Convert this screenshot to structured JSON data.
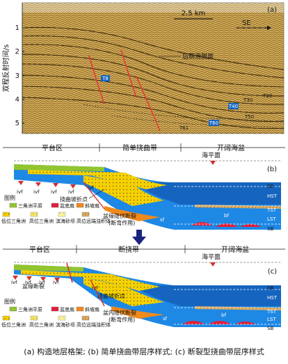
{
  "panel_a": {
    "label": "(a)",
    "scale": "2.5 km",
    "direction": "SE",
    "yaxis_label": "双程反射时间/s",
    "yticks": [
      "1",
      "2",
      "3",
      "4",
      "5"
    ],
    "annotation": "后期滑脱面",
    "horizons": [
      "T8",
      "T20",
      "T30",
      "T40",
      "T60",
      "T50",
      "T61"
    ]
  },
  "panel_b": {
    "label": "(b)",
    "zones": [
      "平台区",
      "简单挠曲带",
      "开阔海盆"
    ],
    "sea_level": "海平面",
    "ivf": "ivf",
    "flexure_point": "挠曲坡折点",
    "fault_note": "盆缘隐伏断裂",
    "fault_note2": "(断弯作用)",
    "sb": "SB",
    "systems": [
      "HST",
      "TST",
      "LST"
    ],
    "sf": "sf",
    "bf": "bf",
    "legend_title": "图例",
    "legend": [
      {
        "text": "三角洲平原",
        "color": "#9acd32"
      },
      {
        "text": "盆底扇",
        "color": "#e0203a"
      },
      {
        "text": "斜坡扇",
        "color": "#f08a1e"
      },
      {
        "text": "低位三角洲",
        "color": "#f5d000"
      },
      {
        "text": "高位三角洲",
        "color": "#f5e66a"
      },
      {
        "text": "滨海砂坝",
        "color": "#fff4a0"
      },
      {
        "text": "高位远端浊积体",
        "color": "#d8a860"
      }
    ]
  },
  "panel_c": {
    "label": "(c)",
    "zones": [
      "平台区",
      "断挠带",
      "开阔海盆"
    ],
    "sea_level": "海平面",
    "ivf": "ivf",
    "fault": "盆缘断裂",
    "flexure_point": "挠曲坡折点",
    "fault_note": "盆内隐伏断裂",
    "fault_note2": "(断弯作用)",
    "sb": "SB",
    "systems": [
      "HST",
      "TST",
      "LST"
    ],
    "sf": "sf",
    "bf": "bf",
    "legend_title": "图例",
    "legend": [
      {
        "text": "三角洲平原",
        "color": "#9acd32"
      },
      {
        "text": "盆底扇",
        "color": "#e0203a"
      },
      {
        "text": "斜坡扇",
        "color": "#f08a1e"
      },
      {
        "text": "低位三角洲",
        "color": "#f5d000"
      },
      {
        "text": "高位三角洲",
        "color": "#f5e66a"
      },
      {
        "text": "滨海砂坝",
        "color": "#fff4a0"
      },
      {
        "text": "高位远端浊积体",
        "color": "#d8a860"
      }
    ]
  },
  "caption": "(a) 构造地层格架; (b) 简单挠曲带层序样式; (c) 断裂型挠曲带层序样式",
  "colors": {
    "sea": "#1e88e5",
    "deep": "#1565c0",
    "sand": "#f5d000",
    "red": "#d32f2f"
  }
}
